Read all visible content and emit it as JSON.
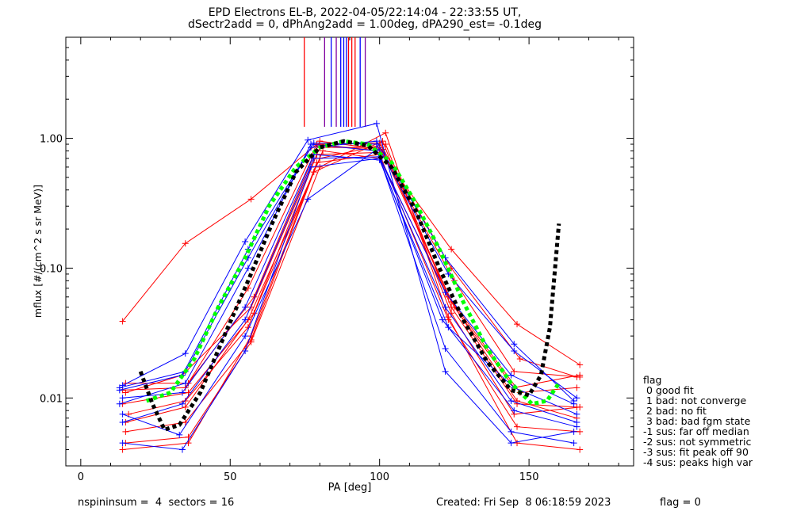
{
  "title_line1": "EPD Electrons EL-B, 2022-04-05/22:14:04 - 22:33:55 UT,",
  "title_line2": "dSectr2add = 0, dPhAng2add = 1.00deg, dPA290_est=  -0.1deg",
  "footer": {
    "left": "nspininsum =  4  sectors = 16",
    "created": "Created: Fri Sep  8 06:18:59 2023",
    "flag": "flag = 0"
  },
  "legend": {
    "title": "flag",
    "items": [
      " 0 good fit",
      " 1 bad: not converge",
      " 2 bad: no fit",
      " 3 bad: bad fgm state",
      "-1 sus: far off median",
      "-2 sus: not symmetric",
      "-3 sus: fit peak off 90",
      "-4 sus: peaks high var"
    ]
  },
  "colors": {
    "red": "#ff0000",
    "blue": "#0000ff",
    "green": "#00ff00",
    "black": "#000000",
    "purple": "#8000a0"
  },
  "chart_data": {
    "type": "line",
    "xlabel": "PA [deg]",
    "ylabel": "mflux [#/(cm^2 s sr MeV)]",
    "xlim": [
      -5,
      185
    ],
    "ylim": [
      0.003,
      6
    ],
    "yscale": "log",
    "xticks": [
      0,
      50,
      100,
      150
    ],
    "yticks": [
      0.01,
      0.1,
      1.0
    ],
    "ytick_labels": [
      "0.01",
      "0.10",
      "1.00"
    ],
    "grid": false,
    "series": [
      {
        "color": "red",
        "points": [
          [
            14,
            0.039
          ],
          [
            35,
            0.155
          ],
          [
            57,
            0.34
          ],
          [
            79,
            0.9
          ],
          [
            100,
            0.8
          ],
          [
            124,
            0.14
          ],
          [
            146,
            0.037
          ],
          [
            167,
            0.018
          ]
        ]
      },
      {
        "color": "red",
        "points": [
          [
            15,
            0.013
          ],
          [
            36,
            0.013
          ],
          [
            58,
            0.06
          ],
          [
            80,
            0.95
          ],
          [
            101,
            0.82
          ],
          [
            125,
            0.05
          ],
          [
            145,
            0.012
          ],
          [
            167,
            0.015
          ]
        ]
      },
      {
        "color": "red",
        "points": [
          [
            15,
            0.0065
          ],
          [
            35,
            0.0085
          ],
          [
            56,
            0.04
          ],
          [
            80,
            0.7
          ],
          [
            102,
            0.9
          ],
          [
            124,
            0.05
          ],
          [
            146,
            0.009
          ],
          [
            166,
            0.0085
          ]
        ]
      },
      {
        "color": "red",
        "points": [
          [
            14,
            0.004
          ],
          [
            36,
            0.0045
          ],
          [
            57,
            0.03
          ],
          [
            79,
            0.65
          ],
          [
            100,
            0.75
          ],
          [
            123,
            0.04
          ],
          [
            146,
            0.006
          ],
          [
            167,
            0.0055
          ]
        ]
      },
      {
        "color": "red",
        "points": [
          [
            15,
            0.0055
          ],
          [
            35,
            0.0065
          ],
          [
            57,
            0.028
          ],
          [
            78,
            0.55
          ],
          [
            101,
            0.95
          ],
          [
            124,
            0.045
          ],
          [
            145,
            0.0075
          ],
          [
            167,
            0.0085
          ]
        ]
      },
      {
        "color": "red",
        "points": [
          [
            14,
            0.009
          ],
          [
            36,
            0.011
          ],
          [
            58,
            0.045
          ],
          [
            81,
            0.8
          ],
          [
            100,
            0.7
          ],
          [
            123,
            0.06
          ],
          [
            147,
            0.011
          ],
          [
            166,
            0.012
          ]
        ]
      },
      {
        "color": "red",
        "points": [
          [
            15,
            0.011
          ],
          [
            34,
            0.015
          ],
          [
            57,
            0.05
          ],
          [
            80,
            0.85
          ],
          [
            100,
            0.85
          ],
          [
            125,
            0.08
          ],
          [
            145,
            0.016
          ],
          [
            167,
            0.0145
          ]
        ]
      },
      {
        "color": "red",
        "points": [
          [
            16,
            0.0075
          ],
          [
            35,
            0.0095
          ],
          [
            56,
            0.035
          ],
          [
            79,
            0.75
          ],
          [
            101,
            0.78
          ],
          [
            124,
            0.055
          ],
          [
            146,
            0.0095
          ],
          [
            166,
            0.007
          ]
        ]
      },
      {
        "color": "red",
        "points": [
          [
            15,
            0.0045
          ],
          [
            36,
            0.005
          ],
          [
            57,
            0.027
          ],
          [
            80,
            0.6
          ],
          [
            102,
            1.1
          ],
          [
            123,
            0.042
          ],
          [
            146,
            0.0045
          ],
          [
            167,
            0.004
          ]
        ]
      },
      {
        "color": "red",
        "points": [
          [
            14,
            0.0115
          ],
          [
            35,
            0.012
          ],
          [
            56,
            0.07
          ],
          [
            79,
            0.9
          ],
          [
            100,
            0.92
          ],
          [
            124,
            0.1
          ],
          [
            147,
            0.02
          ],
          [
            166,
            0.0145
          ]
        ]
      },
      {
        "color": "blue",
        "points": [
          [
            14,
            0.0125
          ],
          [
            35,
            0.022
          ],
          [
            55,
            0.16
          ],
          [
            76,
            0.97
          ],
          [
            99,
            1.3
          ],
          [
            122,
            0.016
          ],
          [
            144,
            0.0045
          ],
          [
            165,
            0.0055
          ]
        ]
      },
      {
        "color": "blue",
        "points": [
          [
            13,
            0.0115
          ],
          [
            34,
            0.015
          ],
          [
            56,
            0.14
          ],
          [
            78,
            0.92
          ],
          [
            99,
            0.9
          ],
          [
            123,
            0.09
          ],
          [
            145,
            0.023
          ],
          [
            166,
            0.01
          ]
        ]
      },
      {
        "color": "blue",
        "points": [
          [
            14,
            0.0075
          ],
          [
            33,
            0.0052
          ],
          [
            55,
            0.03
          ],
          [
            76,
            0.34
          ],
          [
            99,
            0.82
          ],
          [
            122,
            0.024
          ],
          [
            144,
            0.0055
          ],
          [
            165,
            0.0045
          ]
        ]
      },
      {
        "color": "blue",
        "points": [
          [
            14,
            0.0045
          ],
          [
            34,
            0.004
          ],
          [
            55,
            0.023
          ],
          [
            77,
            0.6
          ],
          [
            100,
            0.7
          ],
          [
            121,
            0.04
          ],
          [
            145,
            0.008
          ],
          [
            166,
            0.006
          ]
        ]
      },
      {
        "color": "blue",
        "points": [
          [
            13,
            0.009
          ],
          [
            35,
            0.013
          ],
          [
            56,
            0.1
          ],
          [
            77,
            0.9
          ],
          [
            99,
            0.8
          ],
          [
            122,
            0.065
          ],
          [
            144,
            0.015
          ],
          [
            165,
            0.009
          ]
        ]
      },
      {
        "color": "blue",
        "points": [
          [
            14,
            0.01
          ],
          [
            34,
            0.011
          ],
          [
            55,
            0.05
          ],
          [
            78,
            0.75
          ],
          [
            100,
            0.68
          ],
          [
            123,
            0.035
          ],
          [
            145,
            0.012
          ],
          [
            166,
            0.0075
          ]
        ]
      },
      {
        "color": "blue",
        "points": [
          [
            13,
            0.012
          ],
          [
            35,
            0.016
          ],
          [
            56,
            0.12
          ],
          [
            77,
            0.85
          ],
          [
            99,
            0.95
          ],
          [
            122,
            0.12
          ],
          [
            145,
            0.026
          ],
          [
            165,
            0.0095
          ]
        ]
      },
      {
        "color": "blue",
        "points": [
          [
            14,
            0.0065
          ],
          [
            34,
            0.009
          ],
          [
            55,
            0.04
          ],
          [
            78,
            0.7
          ],
          [
            100,
            0.72
          ],
          [
            122,
            0.05
          ],
          [
            144,
            0.0095
          ],
          [
            166,
            0.0065
          ]
        ]
      },
      {
        "color": "green",
        "style": "dashed",
        "points": [
          [
            22,
            0.0095
          ],
          [
            30,
            0.011
          ],
          [
            38,
            0.02
          ],
          [
            46,
            0.05
          ],
          [
            55,
            0.12
          ],
          [
            63,
            0.3
          ],
          [
            72,
            0.6
          ],
          [
            80,
            0.85
          ],
          [
            88,
            0.95
          ],
          [
            96,
            0.9
          ],
          [
            104,
            0.65
          ],
          [
            112,
            0.32
          ],
          [
            120,
            0.14
          ],
          [
            128,
            0.055
          ],
          [
            136,
            0.024
          ],
          [
            144,
            0.013
          ],
          [
            151,
            0.009
          ],
          [
            156,
            0.0095
          ],
          [
            160,
            0.013
          ]
        ]
      },
      {
        "color": "black",
        "style": "dashed",
        "points": [
          [
            20,
            0.016
          ],
          [
            24,
            0.009
          ],
          [
            28,
            0.0057
          ],
          [
            33,
            0.0062
          ],
          [
            40,
            0.011
          ],
          [
            48,
            0.03
          ],
          [
            56,
            0.08
          ],
          [
            64,
            0.22
          ],
          [
            72,
            0.55
          ],
          [
            80,
            0.85
          ],
          [
            88,
            0.95
          ],
          [
            96,
            0.88
          ],
          [
            104,
            0.6
          ],
          [
            112,
            0.28
          ],
          [
            120,
            0.1
          ],
          [
            128,
            0.04
          ],
          [
            136,
            0.019
          ],
          [
            144,
            0.0115
          ],
          [
            150,
            0.0105
          ],
          [
            154,
            0.015
          ],
          [
            157,
            0.035
          ],
          [
            160,
            0.22
          ]
        ]
      }
    ],
    "peak_markers": [
      {
        "x": 74.8,
        "color": "red"
      },
      {
        "x": 81.6,
        "color": "purple"
      },
      {
        "x": 83.8,
        "color": "blue"
      },
      {
        "x": 85.5,
        "color": "purple"
      },
      {
        "x": 87.0,
        "color": "blue"
      },
      {
        "x": 88.0,
        "color": "blue"
      },
      {
        "x": 88.9,
        "color": "blue"
      },
      {
        "x": 89.6,
        "color": "red"
      },
      {
        "x": 90.7,
        "color": "red"
      },
      {
        "x": 91.8,
        "color": "red"
      },
      {
        "x": 93.5,
        "color": "blue"
      },
      {
        "x": 95.2,
        "color": "purple"
      }
    ]
  }
}
